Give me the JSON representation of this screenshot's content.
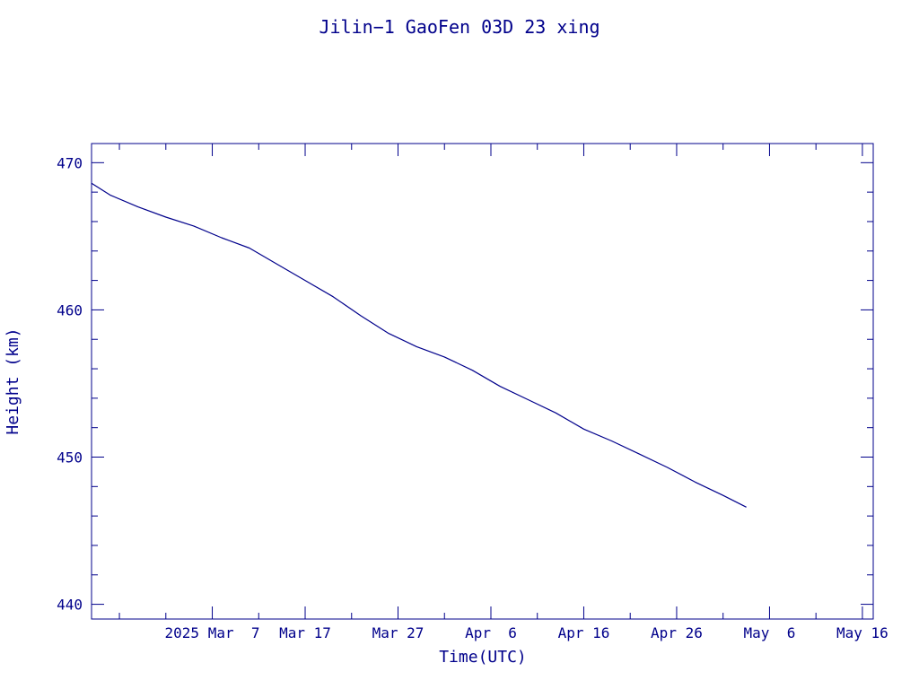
{
  "chart_data": {
    "type": "line",
    "title": "Jilin−1 GaoFen 03D 23 xing",
    "xlabel": "Time(UTC)",
    "ylabel": "Height (km)",
    "ylim": [
      439,
      471.3
    ],
    "y_major_ticks": [
      440,
      450,
      460,
      470
    ],
    "y_minor_step": 2,
    "xlim": [
      "2025-02-22T00:00Z",
      "2025-05-17T04:00Z"
    ],
    "x_ticks": [
      {
        "label": "2025 Mar  7",
        "date": "2025-03-07"
      },
      {
        "label": "Mar 17",
        "date": "2025-03-17"
      },
      {
        "label": "Mar 27",
        "date": "2025-03-27"
      },
      {
        "label": "Apr  6",
        "date": "2025-04-06"
      },
      {
        "label": "Apr 16",
        "date": "2025-04-16"
      },
      {
        "label": "Apr 26",
        "date": "2025-04-26"
      },
      {
        "label": "May  6",
        "date": "2025-05-06"
      },
      {
        "label": "May 16",
        "date": "2025-05-16"
      }
    ],
    "x_minor_step_days": 5,
    "series": [
      {
        "color": "#00008b",
        "points": [
          {
            "x": "2025-02-22T00:00Z",
            "y": 468.6
          },
          {
            "x": "2025-02-24T00:00Z",
            "y": 467.8
          },
          {
            "x": "2025-02-27T00:00Z",
            "y": 467.0
          },
          {
            "x": "2025-03-02T00:00Z",
            "y": 466.3
          },
          {
            "x": "2025-03-05T00:00Z",
            "y": 465.7
          },
          {
            "x": "2025-03-08T00:00Z",
            "y": 464.9
          },
          {
            "x": "2025-03-11T00:00Z",
            "y": 464.2
          },
          {
            "x": "2025-03-14T00:00Z",
            "y": 463.1
          },
          {
            "x": "2025-03-17T00:00Z",
            "y": 462.0
          },
          {
            "x": "2025-03-20T00:00Z",
            "y": 460.9
          },
          {
            "x": "2025-03-23T00:00Z",
            "y": 459.6
          },
          {
            "x": "2025-03-26T00:00Z",
            "y": 458.4
          },
          {
            "x": "2025-03-29T00:00Z",
            "y": 457.5
          },
          {
            "x": "2025-04-01T00:00Z",
            "y": 456.8
          },
          {
            "x": "2025-04-04T00:00Z",
            "y": 455.9
          },
          {
            "x": "2025-04-07T00:00Z",
            "y": 454.8
          },
          {
            "x": "2025-04-10T00:00Z",
            "y": 453.9
          },
          {
            "x": "2025-04-13T00:00Z",
            "y": 453.0
          },
          {
            "x": "2025-04-16T00:00Z",
            "y": 451.9
          },
          {
            "x": "2025-04-19T00:00Z",
            "y": 451.1
          },
          {
            "x": "2025-04-22T00:00Z",
            "y": 450.2
          },
          {
            "x": "2025-04-25T00:00Z",
            "y": 449.3
          },
          {
            "x": "2025-04-28T00:00Z",
            "y": 448.3
          },
          {
            "x": "2025-05-01T00:00Z",
            "y": 447.4
          },
          {
            "x": "2025-05-03T12:00Z",
            "y": 446.6
          }
        ]
      }
    ]
  }
}
